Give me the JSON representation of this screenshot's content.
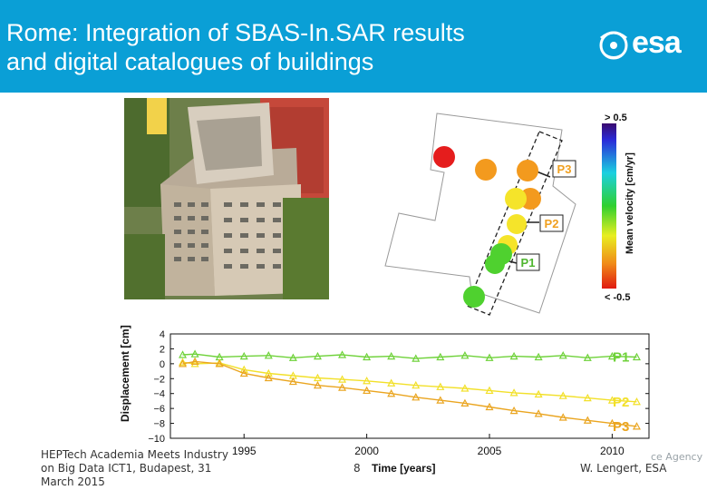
{
  "header": {
    "title_line1": "Rome: Integration of SBAS-In.SAR results",
    "title_line2": "and digital catalogues of buildings",
    "logo_text": "esa",
    "colors": {
      "bar": "#0a9fd6",
      "text": "#ffffff"
    }
  },
  "photo": {
    "icon": "aerial-building-photo"
  },
  "map": {
    "labels": [
      "P3",
      "P2",
      "P1"
    ],
    "label_color": "#f0a020"
  },
  "colorbar": {
    "top_label": "> 0.5",
    "bottom_label": "< -0.5",
    "axis_label": "Mean velocity [cm/yr]"
  },
  "chart_data": {
    "type": "line",
    "xlabel": "Time [years]",
    "ylabel": "Displacement [cm]",
    "xlim": [
      1992,
      2011.5
    ],
    "ylim": [
      -10,
      4
    ],
    "x_ticks": [
      "1995",
      "2000",
      "2005",
      "2010"
    ],
    "y_ticks": [
      "4",
      "2",
      "0",
      "−2",
      "−4",
      "−6",
      "−8",
      "−10"
    ],
    "series": [
      {
        "name": "P1",
        "color": "#6fd23a",
        "x": [
          1992.5,
          1993,
          1994,
          1995,
          1996,
          1997,
          1998,
          1999,
          2000,
          2001,
          2002,
          2003,
          2004,
          2005,
          2006,
          2007,
          2008,
          2009,
          2010,
          2011
        ],
        "y": [
          1.2,
          1.3,
          0.9,
          1.0,
          1.1,
          0.8,
          1.0,
          1.2,
          0.9,
          1.0,
          0.7,
          0.9,
          1.1,
          0.8,
          1.0,
          0.9,
          1.1,
          0.8,
          1.0,
          0.9
        ]
      },
      {
        "name": "P2",
        "color": "#f2e02a",
        "x": [
          1992.5,
          1993,
          1994,
          1995,
          1996,
          1997,
          1998,
          1999,
          2000,
          2001,
          2002,
          2003,
          2004,
          2005,
          2006,
          2007,
          2008,
          2009,
          2010,
          2011
        ],
        "y": [
          0.2,
          0.0,
          0.1,
          -0.8,
          -1.3,
          -1.6,
          -1.9,
          -2.1,
          -2.3,
          -2.6,
          -2.9,
          -3.1,
          -3.3,
          -3.6,
          -3.9,
          -4.1,
          -4.3,
          -4.6,
          -4.9,
          -5.1
        ]
      },
      {
        "name": "P3",
        "color": "#eaa520",
        "x": [
          1992.5,
          1993,
          1994,
          1995,
          1996,
          1997,
          1998,
          1999,
          2000,
          2001,
          2002,
          2003,
          2004,
          2005,
          2006,
          2007,
          2008,
          2009,
          2010,
          2011
        ],
        "y": [
          0.0,
          0.3,
          0.0,
          -1.3,
          -1.9,
          -2.4,
          -2.9,
          -3.2,
          -3.6,
          -4.0,
          -4.5,
          -4.9,
          -5.3,
          -5.8,
          -6.3,
          -6.7,
          -7.2,
          -7.6,
          -8.0,
          -8.4
        ]
      }
    ]
  },
  "footer": {
    "event_line1": "HEPTech Academia Meets Industry",
    "event_line2": "on Big Data ICT1, Budapest, 31",
    "event_line3": "March 2015",
    "page": "8",
    "author": "W. Lengert, ESA",
    "agency_fragment": "ce Agency"
  }
}
